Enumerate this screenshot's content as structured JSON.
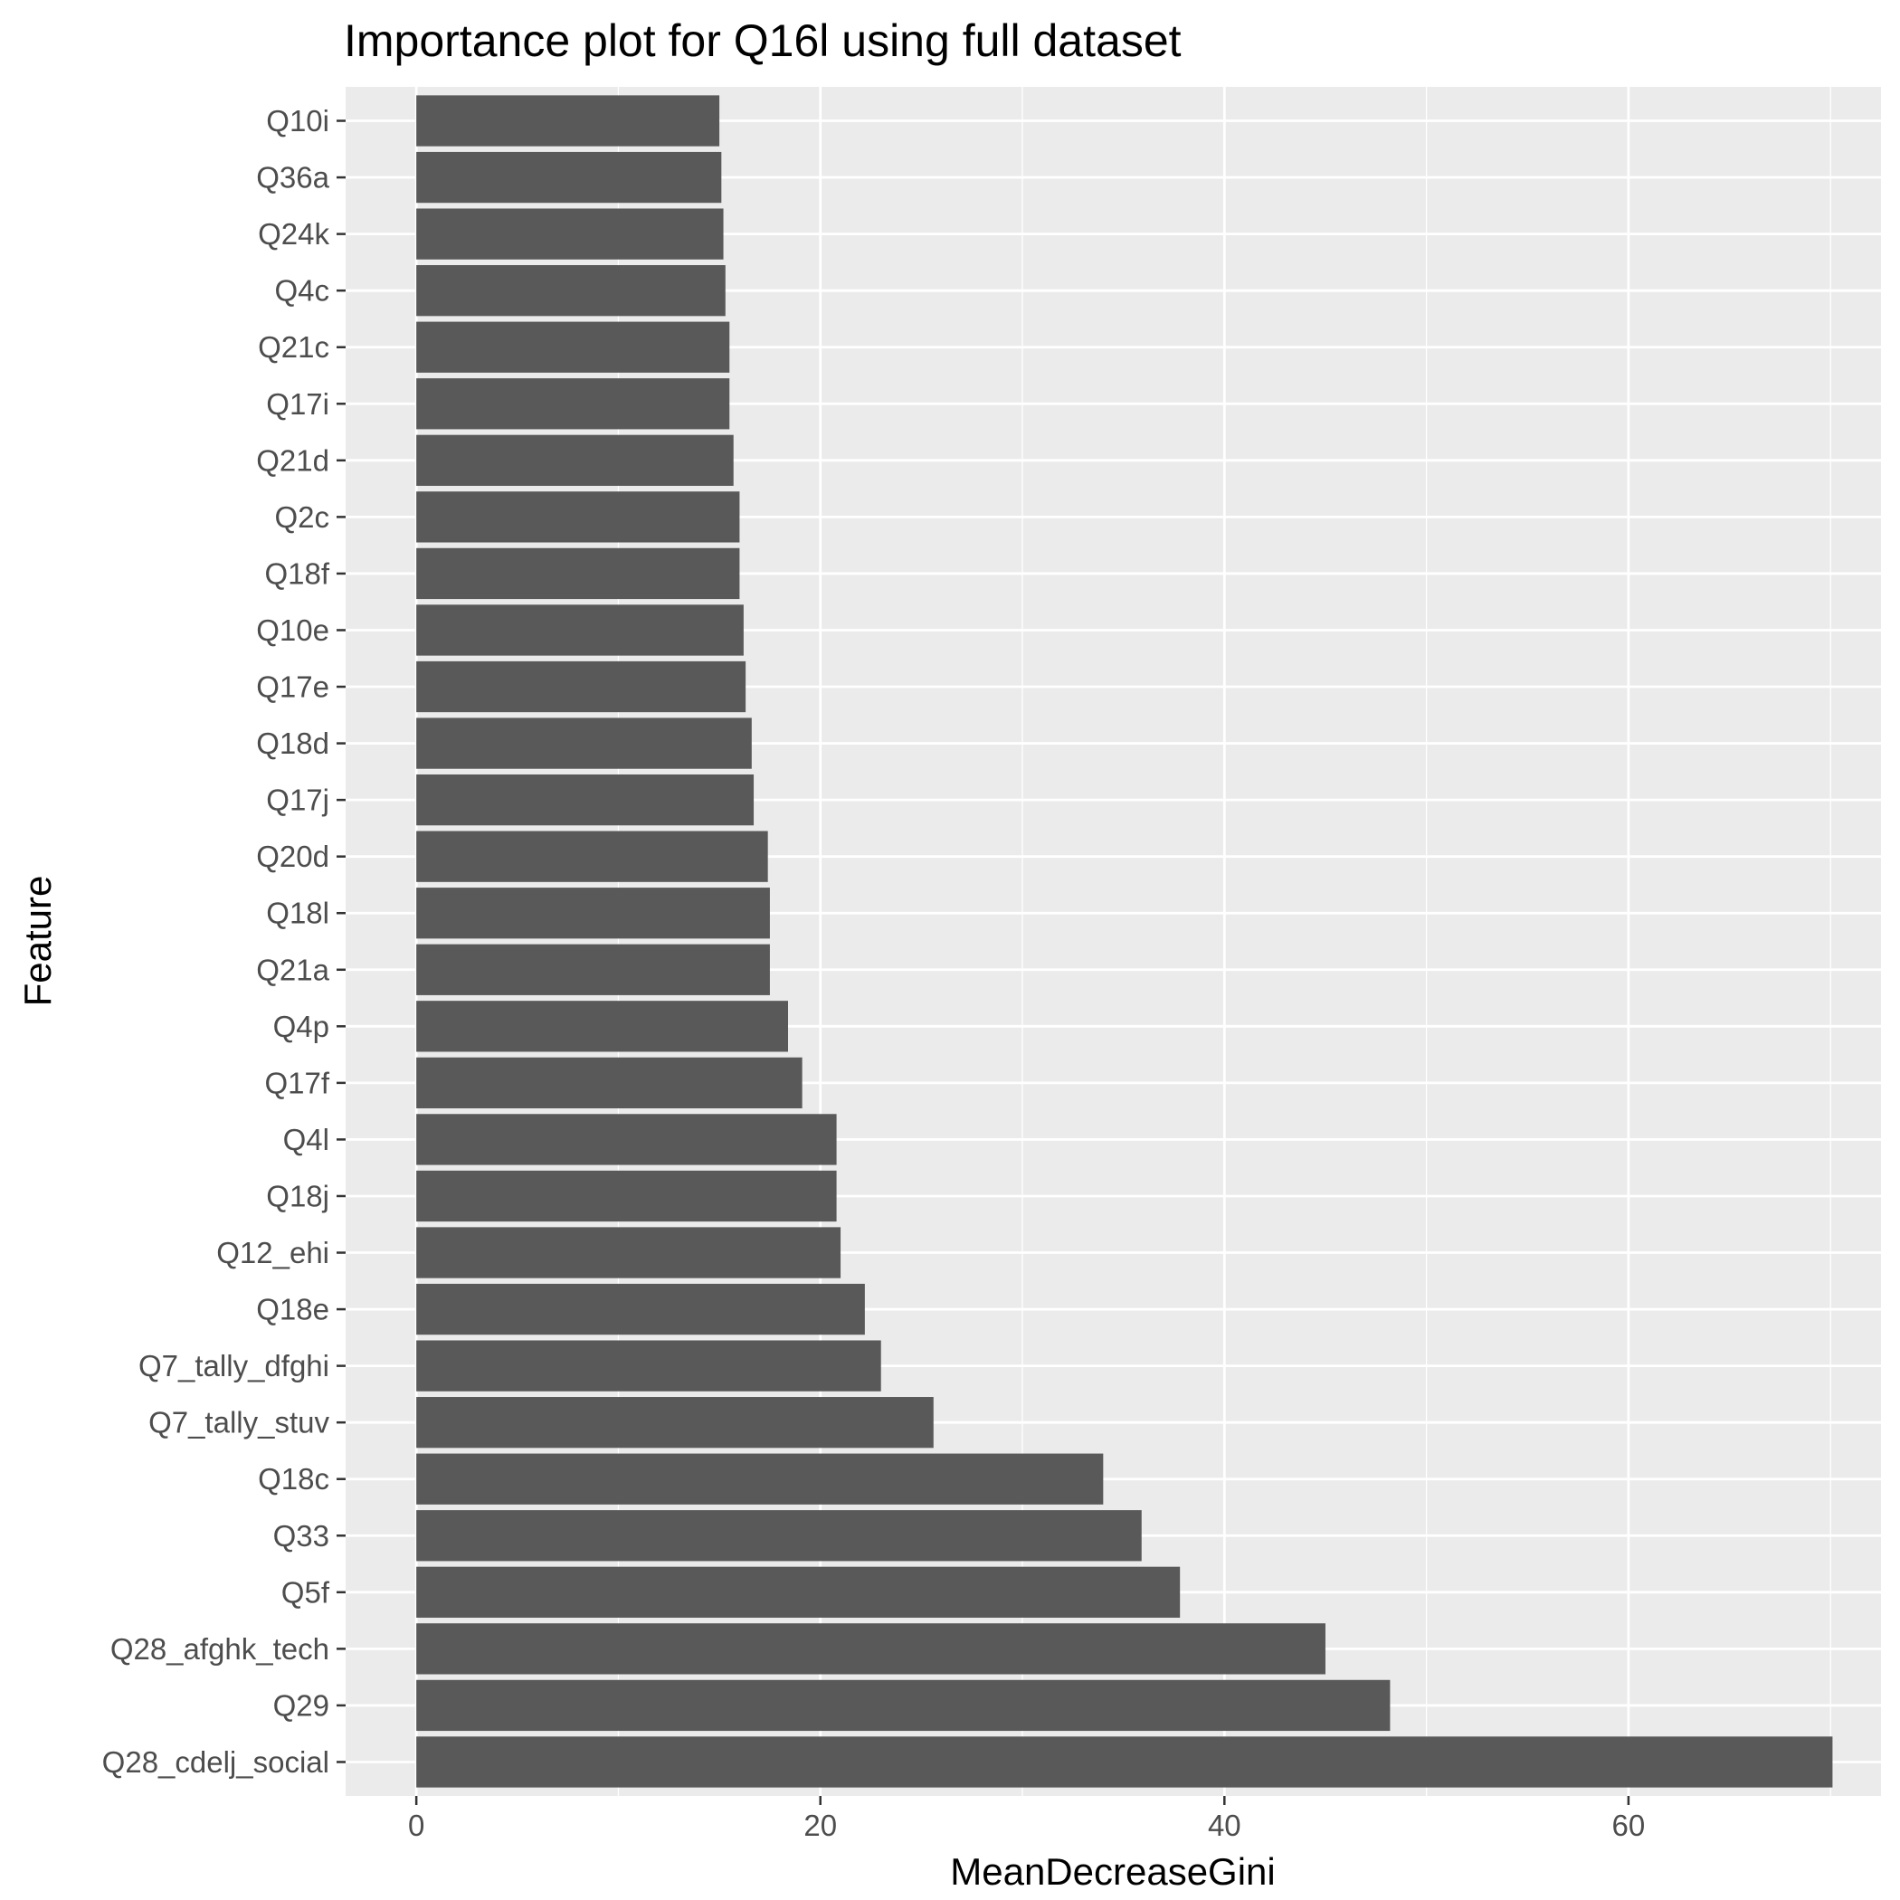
{
  "chart_data": {
    "type": "bar",
    "orientation": "horizontal",
    "title": "Importance plot for Q16l using full dataset",
    "xlabel": "MeanDecreaseGini",
    "ylabel": "Feature",
    "xlim": [
      -3.5,
      72.5
    ],
    "x_ticks": [
      0,
      20,
      40,
      60
    ],
    "grid": true,
    "bar_color": "#595959",
    "panel_background": "#ebebeb",
    "categories": [
      "Q28_cdelj_social",
      "Q29",
      "Q28_afghk_tech",
      "Q5f",
      "Q33",
      "Q18c",
      "Q7_tally_stuv",
      "Q7_tally_dfghi",
      "Q18e",
      "Q12_ehi",
      "Q18j",
      "Q4l",
      "Q17f",
      "Q4p",
      "Q21a",
      "Q18l",
      "Q20d",
      "Q17j",
      "Q18d",
      "Q17e",
      "Q10e",
      "Q18f",
      "Q2c",
      "Q21d",
      "Q17i",
      "Q21c",
      "Q4c",
      "Q24k",
      "Q36a",
      "Q10i"
    ],
    "values": [
      70.1,
      48.2,
      45.0,
      37.8,
      35.9,
      34.0,
      25.6,
      23.0,
      22.2,
      21.0,
      20.8,
      20.8,
      19.1,
      18.4,
      17.5,
      17.5,
      17.4,
      16.7,
      16.6,
      16.3,
      16.2,
      16.0,
      16.0,
      15.7,
      15.5,
      15.5,
      15.3,
      15.2,
      15.1,
      15.0
    ]
  }
}
